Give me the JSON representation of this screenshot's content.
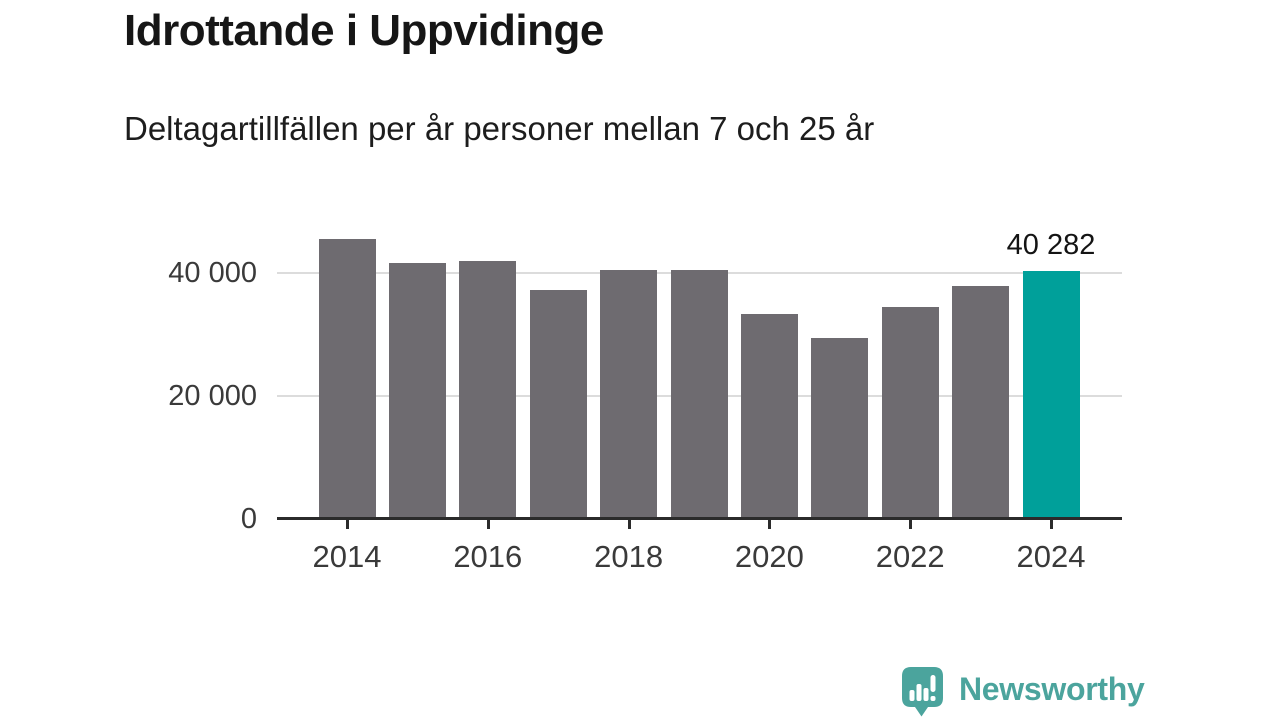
{
  "header": {
    "title": "Idrottande i Uppvidinge",
    "subtitle": "Deltagartillfällen per år personer mellan 7 och 25 år"
  },
  "chart_data": {
    "type": "bar",
    "title": "Idrottande i Uppvidinge",
    "subtitle": "Deltagartillfällen per år personer mellan 7 och 25 år",
    "categories": [
      2014,
      2015,
      2016,
      2017,
      2018,
      2019,
      2020,
      2021,
      2022,
      2023,
      2024
    ],
    "values": [
      45500,
      41600,
      42000,
      37200,
      40500,
      40500,
      33400,
      29400,
      34400,
      37900,
      40282
    ],
    "bar_color": "#6e6b70",
    "highlight": {
      "category": 2024,
      "value": 40282,
      "label": "40 282",
      "color": "#00a09a"
    },
    "x_tick_labels": [
      "2014",
      "2016",
      "2018",
      "2020",
      "2022",
      "2024"
    ],
    "y_ticks": [
      {
        "value": 0,
        "label": "0"
      },
      {
        "value": 20000,
        "label": "20 000"
      },
      {
        "value": 40000,
        "label": "40 000"
      }
    ],
    "ylim": [
      0,
      47000
    ],
    "xlabel": "",
    "ylabel": "",
    "grid": "horizontal",
    "legend": "none"
  },
  "branding": {
    "logo_text": "Newsworthy",
    "color": "#4ba49d"
  },
  "colors": {
    "axis": "#2b2b2b",
    "gridline": "#dcdcdc",
    "tick_label": "#3a3a3a",
    "text": "#161616"
  }
}
